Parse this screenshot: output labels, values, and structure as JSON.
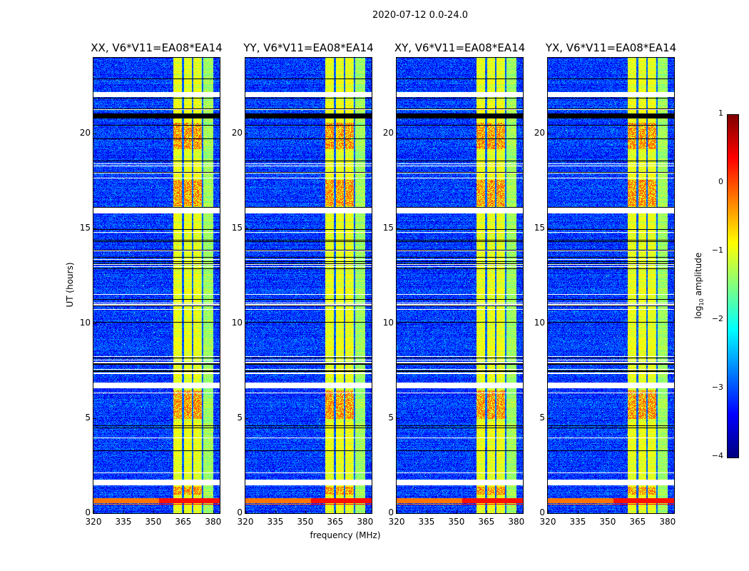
{
  "figure": {
    "suptitle": "2020-07-12 0.0-24.0"
  },
  "chart_data": {
    "type": "heatmap",
    "xlabel": "frequency (MHz)",
    "ylabel": "UT (hours)",
    "xlim": [
      320,
      383.3
    ],
    "ylim": [
      0,
      24
    ],
    "xticks": [
      320,
      335,
      350,
      365,
      380
    ],
    "yticks": [
      0,
      5,
      10,
      15,
      20
    ],
    "panels": [
      {
        "title": "XX, V6*V11=EA08*EA14"
      },
      {
        "title": "YY, V6*V11=EA08*EA14"
      },
      {
        "title": "XY, V6*V11=EA08*EA14"
      },
      {
        "title": "YX, V6*V11=EA08*EA14"
      }
    ],
    "colorbar": {
      "label_main": "log",
      "label_sub": "10",
      "label_rest": " amplitude",
      "range": [
        -4,
        1
      ],
      "ticks": [
        1,
        0,
        -1,
        -2,
        -3,
        -4
      ],
      "tick_labels": [
        "1",
        "0",
        "−1",
        "−2",
        "−3",
        "−4"
      ],
      "colormap": "jet"
    },
    "background_log_amplitude": -3.1,
    "bright_band_MHz": [
      360,
      380
    ],
    "bright_band_log_amplitude": -1.0,
    "band_gaps_MHz": [
      364.6,
      369.6,
      374.6
    ],
    "flagged_white_hours": [
      [
        21.95,
        22.2
      ],
      [
        15.85,
        16.1
      ],
      [
        6.62,
        6.88
      ],
      [
        1.5,
        1.78
      ]
    ],
    "dark_rows_hours": [
      [
        20.85,
        21.05
      ],
      [
        0.55,
        0.8
      ]
    ]
  }
}
